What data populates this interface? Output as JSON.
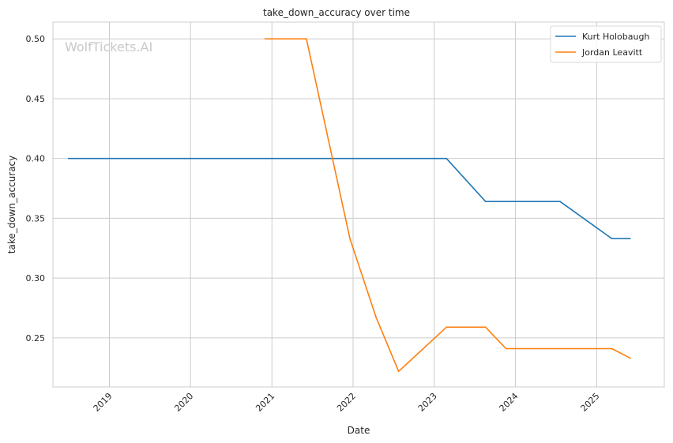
{
  "chart_data": {
    "type": "line",
    "title": "take_down_accuracy over time",
    "xlabel": "Date",
    "ylabel": "take_down_accuracy",
    "watermark": "WolfTickets.AI",
    "x_ticks": [
      "2019",
      "2020",
      "2021",
      "2022",
      "2023",
      "2024",
      "2025"
    ],
    "y_ticks": [
      "0.25",
      "0.30",
      "0.35",
      "0.40",
      "0.45",
      "0.50"
    ],
    "xlim": [
      "2018-04-22",
      "2025-11-01"
    ],
    "ylim": [
      0.209,
      0.514
    ],
    "grid": true,
    "legend_position": "top-right",
    "series": [
      {
        "name": "Kurt Holobaugh",
        "color": "#1f77b4",
        "points": [
          {
            "x": "2018-07-01",
            "y": 0.4
          },
          {
            "x": "2023-02-25",
            "y": 0.4
          },
          {
            "x": "2023-08-20",
            "y": 0.364
          },
          {
            "x": "2024-07-20",
            "y": 0.364
          },
          {
            "x": "2025-03-10",
            "y": 0.333
          },
          {
            "x": "2025-06-01",
            "y": 0.333
          }
        ]
      },
      {
        "name": "Jordan Leavitt",
        "color": "#ff7f0e",
        "points": [
          {
            "x": "2020-12-01",
            "y": 0.5
          },
          {
            "x": "2021-06-05",
            "y": 0.5
          },
          {
            "x": "2021-12-18",
            "y": 0.333
          },
          {
            "x": "2022-04-15",
            "y": 0.267
          },
          {
            "x": "2022-07-25",
            "y": 0.222
          },
          {
            "x": "2023-02-25",
            "y": 0.259
          },
          {
            "x": "2023-08-20",
            "y": 0.259
          },
          {
            "x": "2023-11-20",
            "y": 0.241
          },
          {
            "x": "2025-03-10",
            "y": 0.241
          },
          {
            "x": "2025-06-01",
            "y": 0.233
          }
        ]
      }
    ]
  }
}
